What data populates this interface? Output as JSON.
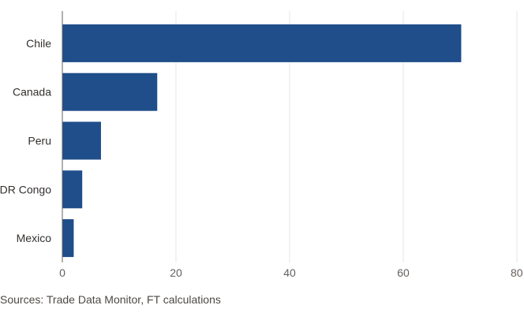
{
  "chart_data": {
    "type": "bar",
    "orientation": "horizontal",
    "categories": [
      "Chile",
      "Canada",
      "Peru",
      "DR Congo",
      "Mexico"
    ],
    "values": [
      70.2,
      16.7,
      6.8,
      3.5,
      2.0
    ],
    "xlim": [
      0,
      80
    ],
    "xticks": [
      "0",
      "20",
      "40",
      "60",
      "80"
    ],
    "grid": "vertical",
    "title": "",
    "xlabel": "",
    "ylabel": "",
    "colors": {
      "bar": "#1f4e8a",
      "grid": "#e8e6e3",
      "axis": "#66605c"
    }
  },
  "footer": {
    "source": "Sources: Trade Data Monitor, FT calculations"
  }
}
